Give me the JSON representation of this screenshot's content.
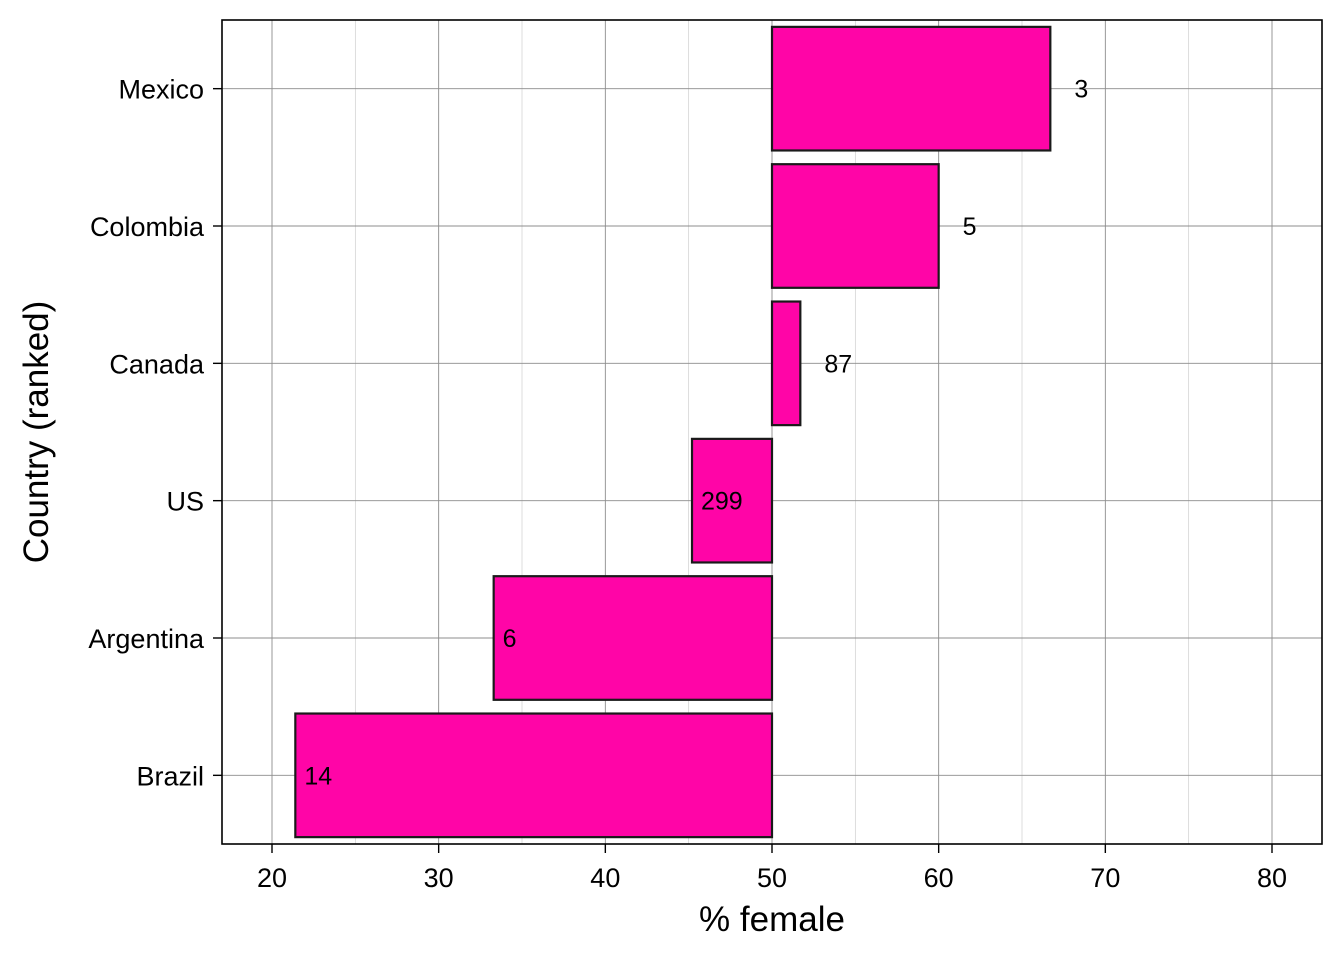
{
  "chart_data": {
    "type": "bar",
    "orientation": "horizontal",
    "baseline": 50,
    "xlabel": "% female",
    "ylabel": "Country (ranked)",
    "xlim": [
      17,
      83
    ],
    "xticks": [
      20,
      30,
      40,
      50,
      60,
      70,
      80
    ],
    "xtick_labels": [
      "20",
      "30",
      "40",
      "50",
      "60",
      "70",
      "80"
    ],
    "grid": true,
    "bar_color": "#FF05A7",
    "bar_edge_color": "#1a1a1a",
    "categories": [
      "Mexico",
      "Colombia",
      "Canada",
      "US",
      "Argentina",
      "Brazil"
    ],
    "values": [
      66.7,
      60.0,
      51.7,
      45.2,
      33.3,
      21.4
    ],
    "bar_labels": [
      "3",
      "5",
      "87",
      "299",
      "6",
      "14"
    ]
  }
}
